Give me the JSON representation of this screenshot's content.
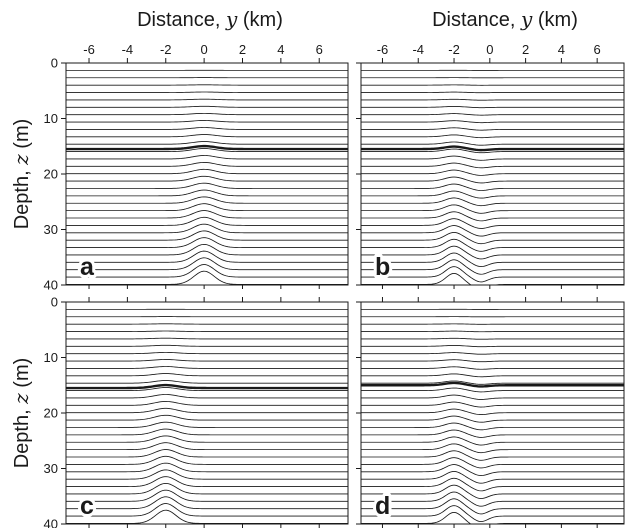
{
  "figure": {
    "top_xlabel_left": {
      "prefix": "Distance, ",
      "var": "y",
      "suffix": " (km)"
    },
    "top_xlabel_right": {
      "prefix": "Distance, ",
      "var": "y",
      "suffix": " (km)"
    },
    "ylabel_top": {
      "prefix": "Depth, ",
      "var": "z",
      "suffix": " (m)"
    },
    "ylabel_bottom": {
      "prefix": "Depth, ",
      "var": "z",
      "suffix": " (m)"
    }
  },
  "chart_data": [
    {
      "type": "line",
      "panel": "a",
      "xlim": [
        -7.2,
        7.5
      ],
      "ylim": [
        0,
        40
      ],
      "y_inverted": true,
      "xticks": [
        -6,
        -4,
        -2,
        0,
        2,
        4,
        6
      ],
      "yticks": [
        0,
        10,
        20,
        30,
        40
      ],
      "show_xtick_labels": true,
      "show_ytick_labels": true,
      "grid": false,
      "contour_levels": {
        "start": 1.33,
        "stop": 40,
        "step": 1.33
      },
      "highlight_level": 15.5,
      "depressions": [
        {
          "center": 0.0,
          "width": 0.75,
          "amplitude": -1.8
        }
      ]
    },
    {
      "type": "line",
      "panel": "b",
      "xlim": [
        -7.2,
        7.5
      ],
      "ylim": [
        0,
        40
      ],
      "y_inverted": true,
      "xticks": [
        -6,
        -4,
        -2,
        0,
        2,
        4,
        6
      ],
      "yticks": [
        0,
        10,
        20,
        30,
        40
      ],
      "show_xtick_labels": true,
      "show_ytick_labels": false,
      "grid": false,
      "contour_levels": {
        "start": 1.33,
        "stop": 40,
        "step": 1.33
      },
      "highlight_level": 15.5,
      "depressions": [
        {
          "center": -2.0,
          "width": 0.65,
          "amplitude": -1.5
        },
        {
          "center": -0.5,
          "width": 0.55,
          "amplitude": 0.7
        }
      ]
    },
    {
      "type": "line",
      "panel": "c",
      "xlim": [
        -7.2,
        7.5
      ],
      "ylim": [
        0,
        40
      ],
      "y_inverted": true,
      "xticks": [
        -6,
        -4,
        -2,
        0,
        2,
        4,
        6
      ],
      "yticks": [
        0,
        10,
        20,
        30,
        40
      ],
      "show_xtick_labels": false,
      "show_ytick_labels": true,
      "grid": false,
      "contour_levels": {
        "start": 1.33,
        "stop": 40,
        "step": 1.33
      },
      "highlight_level": 15.5,
      "depressions": [
        {
          "center": -2.0,
          "width": 0.75,
          "amplitude": -1.8
        }
      ]
    },
    {
      "type": "line",
      "panel": "d",
      "xlim": [
        -7.2,
        7.5
      ],
      "ylim": [
        0,
        40
      ],
      "y_inverted": true,
      "xticks": [
        -6,
        -4,
        -2,
        0,
        2,
        4,
        6
      ],
      "yticks": [
        0,
        10,
        20,
        30,
        40
      ],
      "show_xtick_labels": false,
      "show_ytick_labels": false,
      "grid": false,
      "contour_levels": {
        "start": 1.33,
        "stop": 40,
        "step": 1.33
      },
      "highlight_level": 15.0,
      "depressions": [
        {
          "center": -2.0,
          "width": 0.65,
          "amplitude": -1.5
        },
        {
          "center": -0.5,
          "width": 0.55,
          "amplitude": 0.8
        }
      ]
    }
  ]
}
